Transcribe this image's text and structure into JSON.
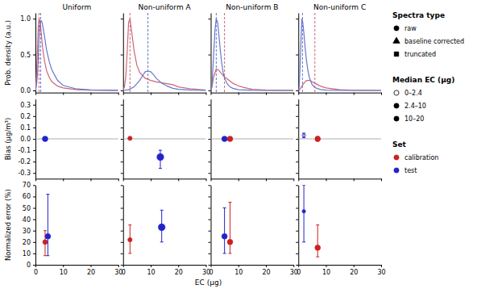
{
  "chart_data": [
    {
      "type": "line",
      "title": "Uniform",
      "ylabel": "Prob. density (a.u.)",
      "xlim": [
        0,
        30
      ],
      "ylim": [
        -0.03,
        1.08
      ],
      "xticks": [
        0,
        10,
        20,
        30
      ],
      "yticks": [
        {
          "value": 0.0,
          "label": "0.0"
        },
        0.5,
        {
          "value": 1.0,
          "label": "1.0"
        }
      ],
      "tick_labels": "y",
      "series": [
        {
          "color": "#cc6677",
          "x": [
            0.0,
            0.3,
            0.7,
            1.0,
            1.3,
            1.6,
            1.9,
            2.2,
            2.5,
            3.0,
            3.5,
            4.0,
            5.0,
            6.0,
            8.0,
            10.0,
            15.0,
            20.0,
            30.0
          ],
          "values": [
            0.0,
            0.15,
            0.55,
            0.88,
            1.0,
            0.97,
            0.88,
            0.76,
            0.63,
            0.48,
            0.37,
            0.28,
            0.18,
            0.12,
            0.06,
            0.035,
            0.01,
            0.004,
            0.0
          ]
        },
        {
          "color": "#6677cc",
          "x": [
            0.0,
            0.3,
            0.7,
            1.0,
            1.3,
            1.6,
            1.9,
            2.2,
            2.5,
            3.0,
            3.5,
            4.0,
            5.0,
            6.0,
            8.0,
            10.0,
            15.0,
            20.0,
            30.0
          ],
          "values": [
            0.0,
            0.05,
            0.2,
            0.45,
            0.72,
            0.89,
            0.97,
            0.97,
            0.93,
            0.82,
            0.7,
            0.57,
            0.4,
            0.28,
            0.14,
            0.07,
            0.02,
            0.007,
            0.001
          ]
        }
      ],
      "vlines": [
        {
          "value": 1.3,
          "color": "#cc6677",
          "line_style": "dashed"
        },
        {
          "value": 1.9,
          "color": "#6677cc",
          "line_style": "dashed"
        }
      ]
    },
    {
      "type": "line",
      "title": "Non-uniform A",
      "xlim": [
        0,
        30
      ],
      "ylim": [
        -0.03,
        1.08
      ],
      "xticks": [
        0,
        10,
        20,
        30
      ],
      "yticks": [
        0,
        0.5,
        1
      ],
      "tick_labels": false,
      "series": [
        {
          "color": "#cc6677",
          "x": [
            0.0,
            0.5,
            1.0,
            1.5,
            2.0,
            2.5,
            3.0,
            4.0,
            5.0,
            6.0,
            8.0,
            10.0,
            12.0,
            15.0,
            18.0,
            20.0,
            25.0,
            30.0
          ],
          "values": [
            0.0,
            0.05,
            0.2,
            0.55,
            0.95,
            1.0,
            0.85,
            0.55,
            0.35,
            0.25,
            0.17,
            0.14,
            0.12,
            0.1,
            0.08,
            0.05,
            0.02,
            0.005
          ]
        },
        {
          "color": "#6677cc",
          "x": [
            0.0,
            2.0,
            4.0,
            6.0,
            7.0,
            8.0,
            9.0,
            10.0,
            11.0,
            12.0,
            14.0,
            16.0,
            18.0,
            20.0,
            25.0,
            30.0
          ],
          "values": [
            0.0,
            0.01,
            0.05,
            0.14,
            0.2,
            0.26,
            0.27,
            0.26,
            0.22,
            0.17,
            0.1,
            0.06,
            0.03,
            0.015,
            0.004,
            0.001
          ]
        }
      ],
      "vlines": [
        {
          "value": 2.5,
          "color": "#cc6677",
          "line_style": "dashed"
        },
        {
          "value": 9.0,
          "color": "#6677cc",
          "line_style": "dashed"
        }
      ]
    },
    {
      "type": "line",
      "title": "Non-uniform B",
      "xlim": [
        0,
        30
      ],
      "ylim": [
        -0.03,
        1.08
      ],
      "xticks": [
        0,
        10,
        20,
        30
      ],
      "yticks": [
        0,
        0.5,
        1
      ],
      "tick_labels": false,
      "series": [
        {
          "color": "#cc6677",
          "x": [
            0.0,
            0.5,
            1.0,
            2.0,
            3.0,
            4.0,
            5.0,
            6.0,
            7.0,
            8.0,
            10.0,
            12.0,
            15.0,
            20.0,
            25.0,
            30.0
          ],
          "values": [
            0.0,
            0.05,
            0.18,
            0.3,
            0.28,
            0.23,
            0.19,
            0.16,
            0.13,
            0.1,
            0.065,
            0.04,
            0.015,
            0.005,
            0.001,
            0.0
          ]
        },
        {
          "color": "#6677cc",
          "x": [
            0.0,
            0.5,
            1.0,
            1.5,
            2.0,
            2.5,
            3.0,
            3.5,
            4.0,
            4.5,
            5.0,
            6.0,
            7.0,
            8.0,
            10.0,
            15.0,
            20.0,
            30.0
          ],
          "values": [
            0.0,
            0.1,
            0.45,
            0.82,
            1.0,
            0.95,
            0.76,
            0.55,
            0.38,
            0.25,
            0.17,
            0.09,
            0.05,
            0.03,
            0.01,
            0.002,
            0.0,
            0.0
          ]
        }
      ],
      "vlines": [
        {
          "value": 5.0,
          "color": "#cc6677",
          "line_style": "dashed"
        },
        {
          "value": 2.0,
          "color": "#6677cc",
          "line_style": "dashed"
        }
      ]
    },
    {
      "type": "line",
      "title": "Non-uniform C",
      "xlim": [
        0,
        30
      ],
      "ylim": [
        -0.03,
        1.08
      ],
      "xticks": [
        0,
        10,
        20,
        30
      ],
      "yticks": [
        0,
        0.5,
        1
      ],
      "tick_labels": false,
      "series": [
        {
          "color": "#cc6677",
          "x": [
            0.0,
            0.5,
            1.0,
            2.0,
            3.0,
            4.0,
            5.0,
            6.0,
            7.0,
            8.0,
            10.0,
            15.0,
            20.0,
            25.0,
            30.0
          ],
          "values": [
            0.0,
            0.01,
            0.04,
            0.1,
            0.14,
            0.14,
            0.12,
            0.1,
            0.08,
            0.06,
            0.035,
            0.01,
            0.003,
            0.001,
            0.0
          ]
        },
        {
          "color": "#6677cc",
          "x": [
            0.0,
            0.3,
            0.6,
            1.0,
            1.3,
            1.6,
            2.0,
            2.5,
            3.0,
            3.5,
            4.0,
            5.0,
            6.0,
            8.0,
            10.0,
            15.0,
            20.0,
            30.0
          ],
          "values": [
            0.0,
            0.05,
            0.3,
            0.75,
            1.0,
            0.95,
            0.8,
            0.58,
            0.4,
            0.27,
            0.18,
            0.08,
            0.04,
            0.012,
            0.005,
            0.001,
            0.0,
            0.0
          ]
        }
      ],
      "vlines": [
        {
          "value": 6.0,
          "color": "#cc6677",
          "line_style": "dashed"
        },
        {
          "value": 1.5,
          "color": "#6677cc",
          "line_style": "dashed"
        }
      ]
    },
    {
      "type": "scatter",
      "ylabel": "Bias (μg/m³)",
      "xlim": [
        0,
        30
      ],
      "ylim": [
        -0.35,
        0.35
      ],
      "xticks": [
        0,
        10,
        20,
        30
      ],
      "yticks": [
        -0.3,
        -0.2,
        -0.1,
        {
          "value": 0.0,
          "label": "0.0"
        },
        0.1,
        0.2,
        0.3
      ],
      "tick_labels": "y",
      "hlines": [
        {
          "value": 0,
          "color": "#999999"
        }
      ],
      "series": [
        {
          "color": "#cc2222",
          "marker": "circle",
          "x": [],
          "values": [],
          "error_lo": [],
          "error_hi": [],
          "sizes": []
        },
        {
          "color": "#2222cc",
          "marker": "circle",
          "x": [
            3.5
          ],
          "values": [
            0.0
          ],
          "error_lo": [
            0.015
          ],
          "error_hi": [
            0.015
          ],
          "sizes": [
            20
          ]
        }
      ]
    },
    {
      "type": "scatter",
      "xlim": [
        0,
        30
      ],
      "ylim": [
        -0.35,
        0.35
      ],
      "xticks": [
        0,
        10,
        20,
        30
      ],
      "yticks": [
        -0.3,
        -0.2,
        -0.1,
        0,
        0.1,
        0.2,
        0.3
      ],
      "tick_labels": false,
      "hlines": [
        {
          "value": 0,
          "color": "#999999"
        }
      ],
      "series": [
        {
          "color": "#cc2222",
          "marker": "circle",
          "x": [
            2.5
          ],
          "values": [
            0.005
          ],
          "error_lo": [
            0.005
          ],
          "error_hi": [
            0.005
          ],
          "sizes": [
            12
          ]
        },
        {
          "color": "#2222cc",
          "marker": "circle",
          "x": [
            13.5
          ],
          "values": [
            -0.16
          ],
          "error_lo": [
            0.1
          ],
          "error_hi": [
            0.06
          ],
          "sizes": [
            30
          ]
        }
      ]
    },
    {
      "type": "scatter",
      "xlim": [
        0,
        30
      ],
      "ylim": [
        -0.35,
        0.35
      ],
      "xticks": [
        0,
        10,
        20,
        30
      ],
      "yticks": [
        -0.3,
        -0.2,
        -0.1,
        0,
        0.1,
        0.2,
        0.3
      ],
      "tick_labels": false,
      "hlines": [
        {
          "value": 0,
          "color": "#999999"
        }
      ],
      "series": [
        {
          "color": "#cc2222",
          "marker": "circle",
          "x": [
            7.0
          ],
          "values": [
            0.0
          ],
          "error_lo": [
            0.01
          ],
          "error_hi": [
            0.01
          ],
          "sizes": [
            20
          ]
        },
        {
          "color": "#2222cc",
          "marker": "circle",
          "x": [
            5.0
          ],
          "values": [
            0.0
          ],
          "error_lo": [
            0.015
          ],
          "error_hi": [
            0.015
          ],
          "sizes": [
            20
          ]
        }
      ]
    },
    {
      "type": "scatter",
      "xlim": [
        0,
        30
      ],
      "ylim": [
        -0.35,
        0.35
      ],
      "xticks": [
        0,
        10,
        20,
        30
      ],
      "yticks": [
        -0.3,
        -0.2,
        -0.1,
        0,
        0.1,
        0.2,
        0.3
      ],
      "tick_labels": false,
      "hlines": [
        {
          "value": 0,
          "color": "#999999"
        }
      ],
      "series": [
        {
          "color": "#cc2222",
          "marker": "circle",
          "x": [
            7.0
          ],
          "values": [
            0.0
          ],
          "error_lo": [
            0.02
          ],
          "error_hi": [
            0.02
          ],
          "sizes": [
            20
          ]
        },
        {
          "color": "#2222cc",
          "marker": "open-circle",
          "x": [
            2.0
          ],
          "values": [
            0.03
          ],
          "error_lo": [
            0.02
          ],
          "error_hi": [
            0.02
          ],
          "sizes": [
            8
          ]
        }
      ]
    },
    {
      "type": "scatter",
      "ylabel": "Normalized error (%)",
      "xlim": [
        0,
        30
      ],
      "ylim": [
        0,
        70
      ],
      "xticks": [
        0,
        10,
        20,
        30
      ],
      "yticks": [
        0,
        10,
        20,
        30,
        40,
        50,
        60,
        70
      ],
      "series": [
        {
          "color": "#cc2222",
          "marker": "circle",
          "x": [
            3.5
          ],
          "values": [
            20.0
          ],
          "error_lo": [
            12.0
          ],
          "error_hi": [
            10.0
          ],
          "sizes": [
            15
          ]
        },
        {
          "color": "#2222cc",
          "marker": "circle",
          "x": [
            4.5
          ],
          "values": [
            25.0
          ],
          "error_lo": [
            17.0
          ],
          "error_hi": [
            37.0
          ],
          "sizes": [
            20
          ]
        }
      ]
    },
    {
      "type": "scatter",
      "xlim": [
        0,
        30
      ],
      "ylim": [
        0,
        70
      ],
      "xticks": [
        0,
        10,
        20,
        30
      ],
      "yticks": [
        0,
        10,
        20,
        30,
        40,
        50,
        60,
        70
      ],
      "tick_labels": "x",
      "series": [
        {
          "color": "#cc2222",
          "marker": "circle",
          "x": [
            2.5
          ],
          "values": [
            22.0
          ],
          "error_lo": [
            12.0
          ],
          "error_hi": [
            13.0
          ],
          "sizes": [
            12
          ]
        },
        {
          "color": "#2222cc",
          "marker": "circle",
          "x": [
            14.0
          ],
          "values": [
            33.0
          ],
          "error_lo": [
            13.0
          ],
          "error_hi": [
            15.0
          ],
          "sizes": [
            30
          ]
        }
      ]
    },
    {
      "type": "scatter",
      "xlim": [
        0,
        30
      ],
      "ylim": [
        0,
        70
      ],
      "xticks": [
        0,
        10,
        20,
        30
      ],
      "yticks": [
        0,
        10,
        20,
        30,
        40,
        50,
        60,
        70
      ],
      "tick_labels": "x",
      "series": [
        {
          "color": "#cc2222",
          "marker": "circle",
          "x": [
            7.0
          ],
          "values": [
            20.0
          ],
          "error_lo": [
            10.0
          ],
          "error_hi": [
            35.0
          ],
          "sizes": [
            20
          ]
        },
        {
          "color": "#2222cc",
          "marker": "circle",
          "x": [
            5.0
          ],
          "values": [
            25.0
          ],
          "error_lo": [
            15.0
          ],
          "error_hi": [
            25.0
          ],
          "sizes": [
            20
          ]
        }
      ]
    },
    {
      "type": "scatter",
      "xlim": [
        0,
        30
      ],
      "ylim": [
        0,
        70
      ],
      "xticks": [
        0,
        10,
        20,
        30
      ],
      "yticks": [
        0,
        10,
        20,
        30,
        40,
        50,
        60,
        70
      ],
      "tick_labels": "x",
      "series": [
        {
          "color": "#cc2222",
          "marker": "circle",
          "x": [
            7.0
          ],
          "values": [
            15.0
          ],
          "error_lo": [
            8.0
          ],
          "error_hi": [
            20.0
          ],
          "sizes": [
            20
          ]
        },
        {
          "color": "#2222cc",
          "marker": "circle",
          "x": [
            2.0
          ],
          "values": [
            47.0
          ],
          "error_lo": [
            27.0
          ],
          "error_hi": [
            23.0
          ],
          "sizes": [
            8
          ]
        }
      ]
    }
  ],
  "xlabel": "EC (μg)",
  "legend_groups": [
    {
      "title": "Spectra type",
      "items": [
        {
          "name": "raw",
          "marker": "circle",
          "color": "#000000"
        },
        {
          "name": "baseline corrected",
          "marker": "triangle",
          "color": "#000000"
        },
        {
          "name": "truncated",
          "marker": "square",
          "color": "#000000"
        }
      ]
    },
    {
      "title": "Median EC (μg)",
      "items": [
        {
          "name": "0–2.4",
          "marker": "open-circle",
          "color": "#000000"
        },
        {
          "name": "2.4–10",
          "marker": "circle",
          "color": "#000000"
        },
        {
          "name": "10–20",
          "marker": "circle",
          "color": "#000000"
        }
      ]
    },
    {
      "title": "Set",
      "items": [
        {
          "name": "calibration",
          "marker": "circle",
          "color": "#cc2222"
        },
        {
          "name": "test",
          "marker": "circle",
          "color": "#2222cc"
        }
      ]
    }
  ]
}
